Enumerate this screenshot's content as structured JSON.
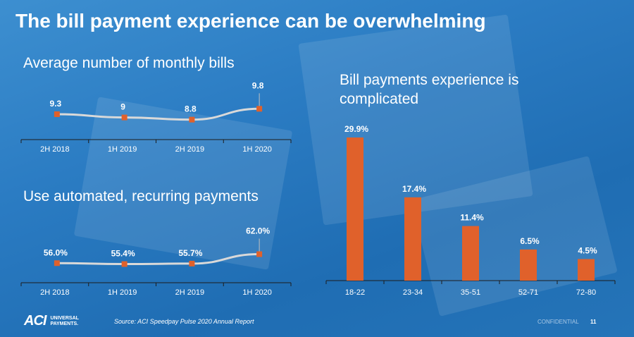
{
  "title": "The bill payment experience can be overwhelming",
  "chart_data": [
    {
      "type": "line",
      "title": "Average number of monthly bills",
      "categories": [
        "2H 2018",
        "1H 2019",
        "2H 2019",
        "1H 2020"
      ],
      "values": [
        9.3,
        9,
        8.8,
        9.8
      ],
      "labels": [
        "9.3",
        "9",
        "8.8",
        "9.8"
      ],
      "ylim": [
        8.0,
        10.6
      ]
    },
    {
      "type": "line",
      "title": "Use automated, recurring payments",
      "categories": [
        "2H 2018",
        "1H 2019",
        "2H 2019",
        "1H 2020"
      ],
      "values": [
        56.0,
        55.4,
        55.7,
        62.0
      ],
      "labels": [
        "56.0%",
        "55.4%",
        "55.7%",
        "62.0%"
      ],
      "ylim": [
        50,
        70
      ]
    },
    {
      "type": "bar",
      "title": "Bill payments experience is complicated",
      "categories": [
        "18-22",
        "23-34",
        "35-51",
        "52-71",
        "72-80"
      ],
      "values": [
        29.9,
        17.4,
        11.4,
        6.5,
        4.5
      ],
      "labels": [
        "29.9%",
        "17.4%",
        "11.4%",
        "6.5%",
        "4.5%"
      ],
      "ylim": [
        0,
        32
      ]
    }
  ],
  "colors": {
    "marker": "#e0612b",
    "bar": "#e0612b",
    "line": "#d9d9d9",
    "axis": "#1c1c1c"
  },
  "footer": {
    "logo_main": "ACI",
    "logo_sub_1": "UNIVERSAL",
    "logo_sub_2": "PAYMENTS.",
    "source": "Source: ACI Speedpay Pulse 2020 Annual Report",
    "confidential": "CONFIDENTIAL",
    "page_number": "11"
  }
}
